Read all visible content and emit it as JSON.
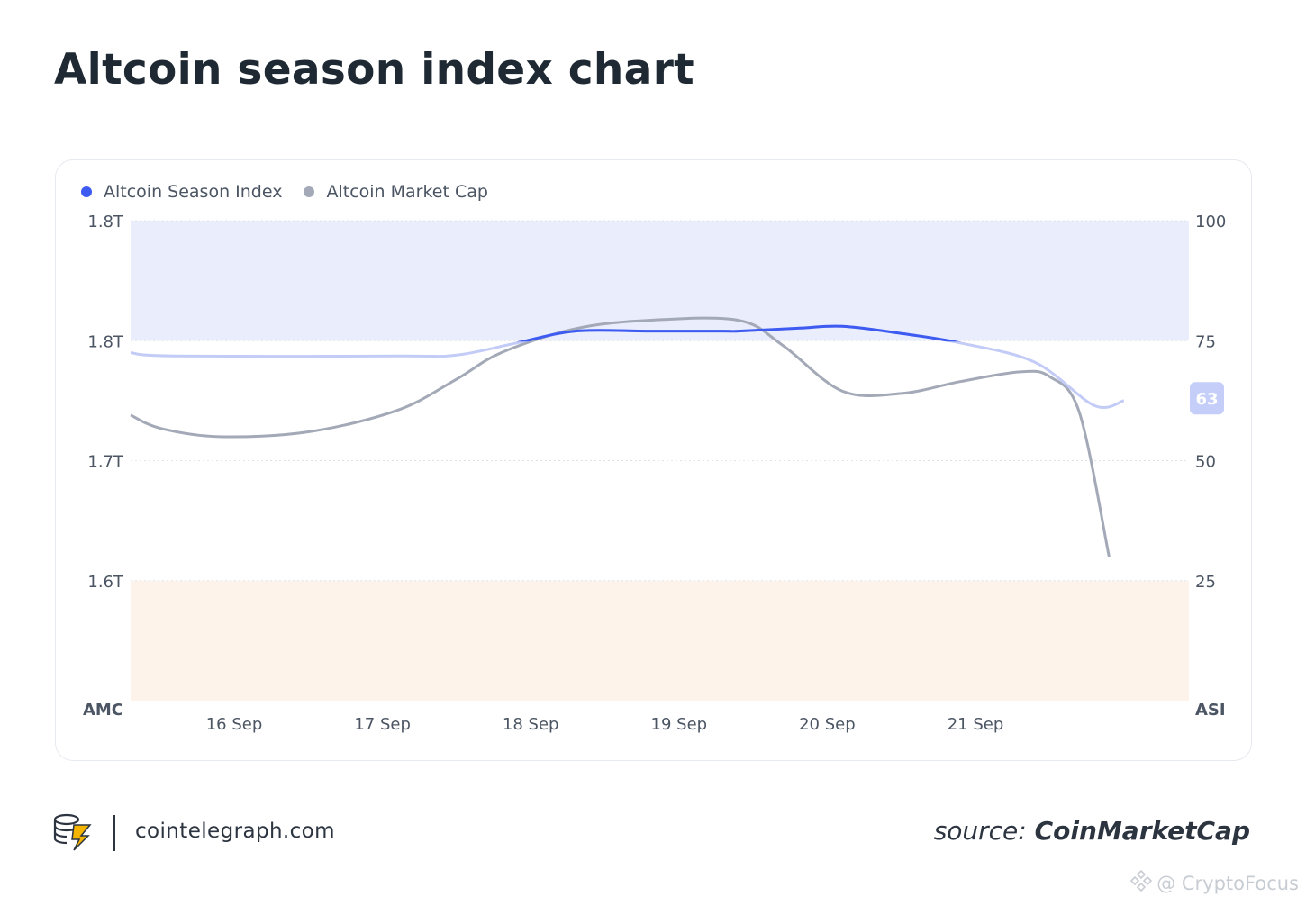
{
  "title": "Altcoin season index chart",
  "legend": {
    "series1": "Altcoin Season Index",
    "series2": "Altcoin Market Cap"
  },
  "footer": {
    "site": "cointelegraph.com",
    "source_label": "source:",
    "source_name": "CoinMarketCap",
    "watermark": "@ CryptoFocus"
  },
  "colors": {
    "index_line": "#3d5af1",
    "index_line_light": "#c3cbf7",
    "market_cap_line": "#a3a9b7",
    "altseason_band": "#eaedfc",
    "bitcoin_season_band": "#fdf3ea",
    "badge": "#c5cef8"
  },
  "icons": [
    "coin-stack-logo-icon",
    "watermark-logo-icon"
  ],
  "chart_data": {
    "type": "line",
    "x_tick_labels": [
      "16 Sep",
      "17 Sep",
      "18 Sep",
      "19 Sep",
      "20 Sep",
      "21 Sep"
    ],
    "left_axis": {
      "title": "AMC",
      "tick_labels": [
        "1.8T",
        "1.8T",
        "1.7T",
        "1.6T"
      ]
    },
    "right_axis": {
      "title": "ASI",
      "ticks": [
        100,
        75,
        50,
        25
      ],
      "range": [
        0,
        100
      ]
    },
    "bands": [
      {
        "from": 75,
        "to": 100,
        "label": ""
      },
      {
        "from": 0,
        "to": 25,
        "label": ""
      }
    ],
    "current_value_badge": "63",
    "series": [
      {
        "name": "Altcoin Season Index",
        "axis": "right",
        "x": [
          0.0,
          0.3,
          1.8,
          2.2,
          2.6,
          3.0,
          3.5,
          4.0,
          4.1,
          4.5,
          4.8,
          5.2,
          5.6,
          6.1,
          6.5,
          6.7
        ],
        "y": [
          72.5,
          71.8,
          71.8,
          72.0,
          74.5,
          77.0,
          77.0,
          77.0,
          77.0,
          77.6,
          78.0,
          76.5,
          74.5,
          70.5,
          61.5,
          62.5
        ]
      },
      {
        "name": "Altcoin Market Cap",
        "axis": "left",
        "x": [
          0.0,
          0.2,
          0.6,
          1.2,
          1.8,
          2.2,
          2.5,
          3.0,
          3.5,
          4.1,
          4.4,
          4.8,
          5.2,
          5.6,
          6.0,
          6.2,
          6.4,
          6.6
        ],
        "y": [
          1.738,
          1.727,
          1.72,
          1.724,
          1.742,
          1.768,
          1.79,
          1.81,
          1.817,
          1.817,
          1.796,
          1.758,
          1.756,
          1.766,
          1.774,
          1.77,
          1.74,
          1.62
        ]
      }
    ]
  }
}
